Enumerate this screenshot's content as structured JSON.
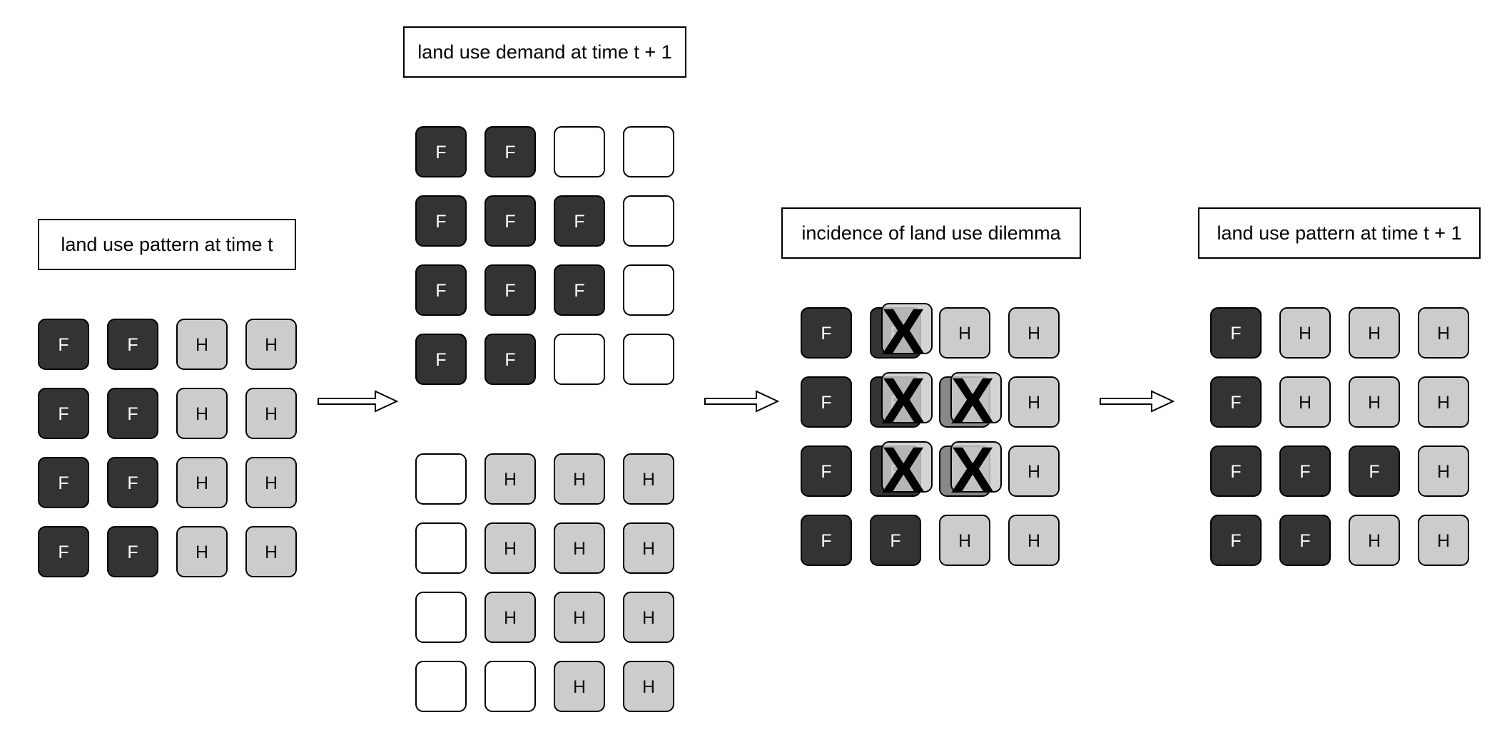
{
  "colors": {
    "forest": "#333333",
    "housing": "#cccccc",
    "empty": "#ffffff",
    "conflict": "#888888",
    "stroke": "#000000"
  },
  "legend_codes": {
    "F": "forest",
    "H": "housing",
    "-": "empty",
    "G": "conflict"
  },
  "stages": [
    {
      "id": "pattern-t",
      "title": "land use pattern at time t",
      "grids": [
        {
          "rows": [
            [
              "F",
              "F",
              "H",
              "H"
            ],
            [
              "F",
              "F",
              "H",
              "H"
            ],
            [
              "F",
              "F",
              "H",
              "H"
            ],
            [
              "F",
              "F",
              "H",
              "H"
            ]
          ]
        }
      ]
    },
    {
      "id": "demand-t1",
      "title": "land use demand at time t + 1",
      "grids": [
        {
          "rows": [
            [
              "F",
              "F",
              "-",
              "-"
            ],
            [
              "F",
              "F",
              "F",
              "-"
            ],
            [
              "F",
              "F",
              "F",
              "-"
            ],
            [
              "F",
              "F",
              "-",
              "-"
            ]
          ]
        },
        {
          "rows": [
            [
              "-",
              "H",
              "H",
              "H"
            ],
            [
              "-",
              "H",
              "H",
              "H"
            ],
            [
              "-",
              "H",
              "H",
              "H"
            ],
            [
              "-",
              "-",
              "H",
              "H"
            ]
          ]
        }
      ]
    },
    {
      "id": "dilemma",
      "title": "incidence of land use dilemma",
      "grids": [
        {
          "rows": [
            [
              "F",
              "F",
              "H",
              "H"
            ],
            [
              "F",
              "F",
              "G",
              "H"
            ],
            [
              "F",
              "F",
              "G",
              "H"
            ],
            [
              "F",
              "F",
              "H",
              "H"
            ]
          ]
        }
      ],
      "conflicts": [
        {
          "row": 0,
          "col": 1,
          "symbol": "X"
        },
        {
          "row": 1,
          "col": 1,
          "symbol": "X"
        },
        {
          "row": 2,
          "col": 1,
          "symbol": "X"
        },
        {
          "row": 1,
          "col": 2,
          "symbol": "X"
        },
        {
          "row": 2,
          "col": 2,
          "symbol": "X"
        }
      ]
    },
    {
      "id": "pattern-t1",
      "title": "land use pattern at time t + 1",
      "grids": [
        {
          "rows": [
            [
              "F",
              "H",
              "H",
              "H"
            ],
            [
              "F",
              "H",
              "H",
              "H"
            ],
            [
              "F",
              "F",
              "F",
              "H"
            ],
            [
              "F",
              "F",
              "H",
              "H"
            ]
          ]
        }
      ]
    }
  ],
  "arrows": [
    {
      "from": "pattern-t",
      "to": "demand-t1"
    },
    {
      "from": "demand-t1",
      "to": "dilemma"
    },
    {
      "from": "dilemma",
      "to": "pattern-t1"
    }
  ]
}
